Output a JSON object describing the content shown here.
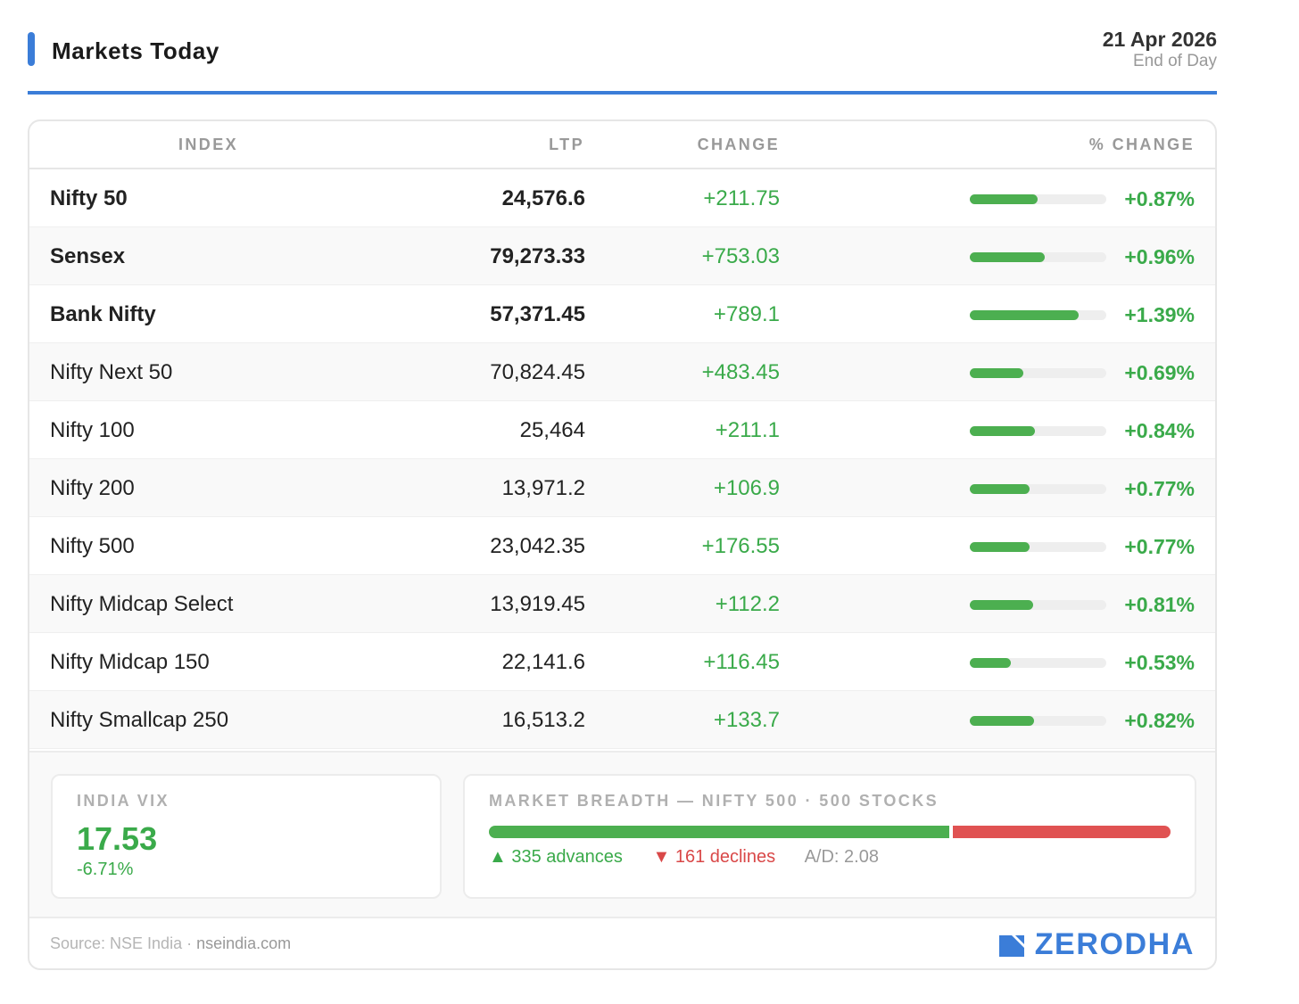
{
  "header": {
    "title": "Markets Today",
    "date": "21 Apr 2026",
    "session": "End of Day"
  },
  "table": {
    "columns": {
      "index": "INDEX",
      "ltp": "LTP",
      "change": "CHANGE",
      "pct_change": "% CHANGE"
    },
    "rows": [
      {
        "name": "Nifty 50",
        "ltp": "24,576.6",
        "change": "+211.75",
        "pct": "+0.87%",
        "pct_value": 0.87,
        "bold": true
      },
      {
        "name": "Sensex",
        "ltp": "79,273.33",
        "change": "+753.03",
        "pct": "+0.96%",
        "pct_value": 0.96,
        "bold": true
      },
      {
        "name": "Bank Nifty",
        "ltp": "57,371.45",
        "change": "+789.1",
        "pct": "+1.39%",
        "pct_value": 1.39,
        "bold": true
      },
      {
        "name": "Nifty Next 50",
        "ltp": "70,824.45",
        "change": "+483.45",
        "pct": "+0.69%",
        "pct_value": 0.69,
        "bold": false
      },
      {
        "name": "Nifty 100",
        "ltp": "25,464",
        "change": "+211.1",
        "pct": "+0.84%",
        "pct_value": 0.84,
        "bold": false
      },
      {
        "name": "Nifty 200",
        "ltp": "13,971.2",
        "change": "+106.9",
        "pct": "+0.77%",
        "pct_value": 0.77,
        "bold": false
      },
      {
        "name": "Nifty 500",
        "ltp": "23,042.35",
        "change": "+176.55",
        "pct": "+0.77%",
        "pct_value": 0.77,
        "bold": false
      },
      {
        "name": "Nifty Midcap Select",
        "ltp": "13,919.45",
        "change": "+112.2",
        "pct": "+0.81%",
        "pct_value": 0.81,
        "bold": false
      },
      {
        "name": "Nifty Midcap 150",
        "ltp": "22,141.6",
        "change": "+116.45",
        "pct": "+0.53%",
        "pct_value": 0.53,
        "bold": false
      },
      {
        "name": "Nifty Smallcap 250",
        "ltp": "16,513.2",
        "change": "+133.7",
        "pct": "+0.82%",
        "pct_value": 0.82,
        "bold": false
      }
    ]
  },
  "vix": {
    "label": "INDIA VIX",
    "value": "17.53",
    "change": "-6.71%"
  },
  "breadth": {
    "label": "MARKET BREADTH — NIFTY 500 · 500 STOCKS",
    "advances": 335,
    "declines": 161,
    "advances_text": "▲ 335 advances",
    "declines_text": "▼ 161 declines",
    "ad_ratio": "A/D: 2.08"
  },
  "footer": {
    "source_label": "Source: NSE India ·",
    "source_site": "nseindia.com",
    "brand": "ZERODHA"
  },
  "colors": {
    "accent": "#3b7dd8",
    "positive": "#3aaa4a",
    "negative": "#d94848"
  }
}
